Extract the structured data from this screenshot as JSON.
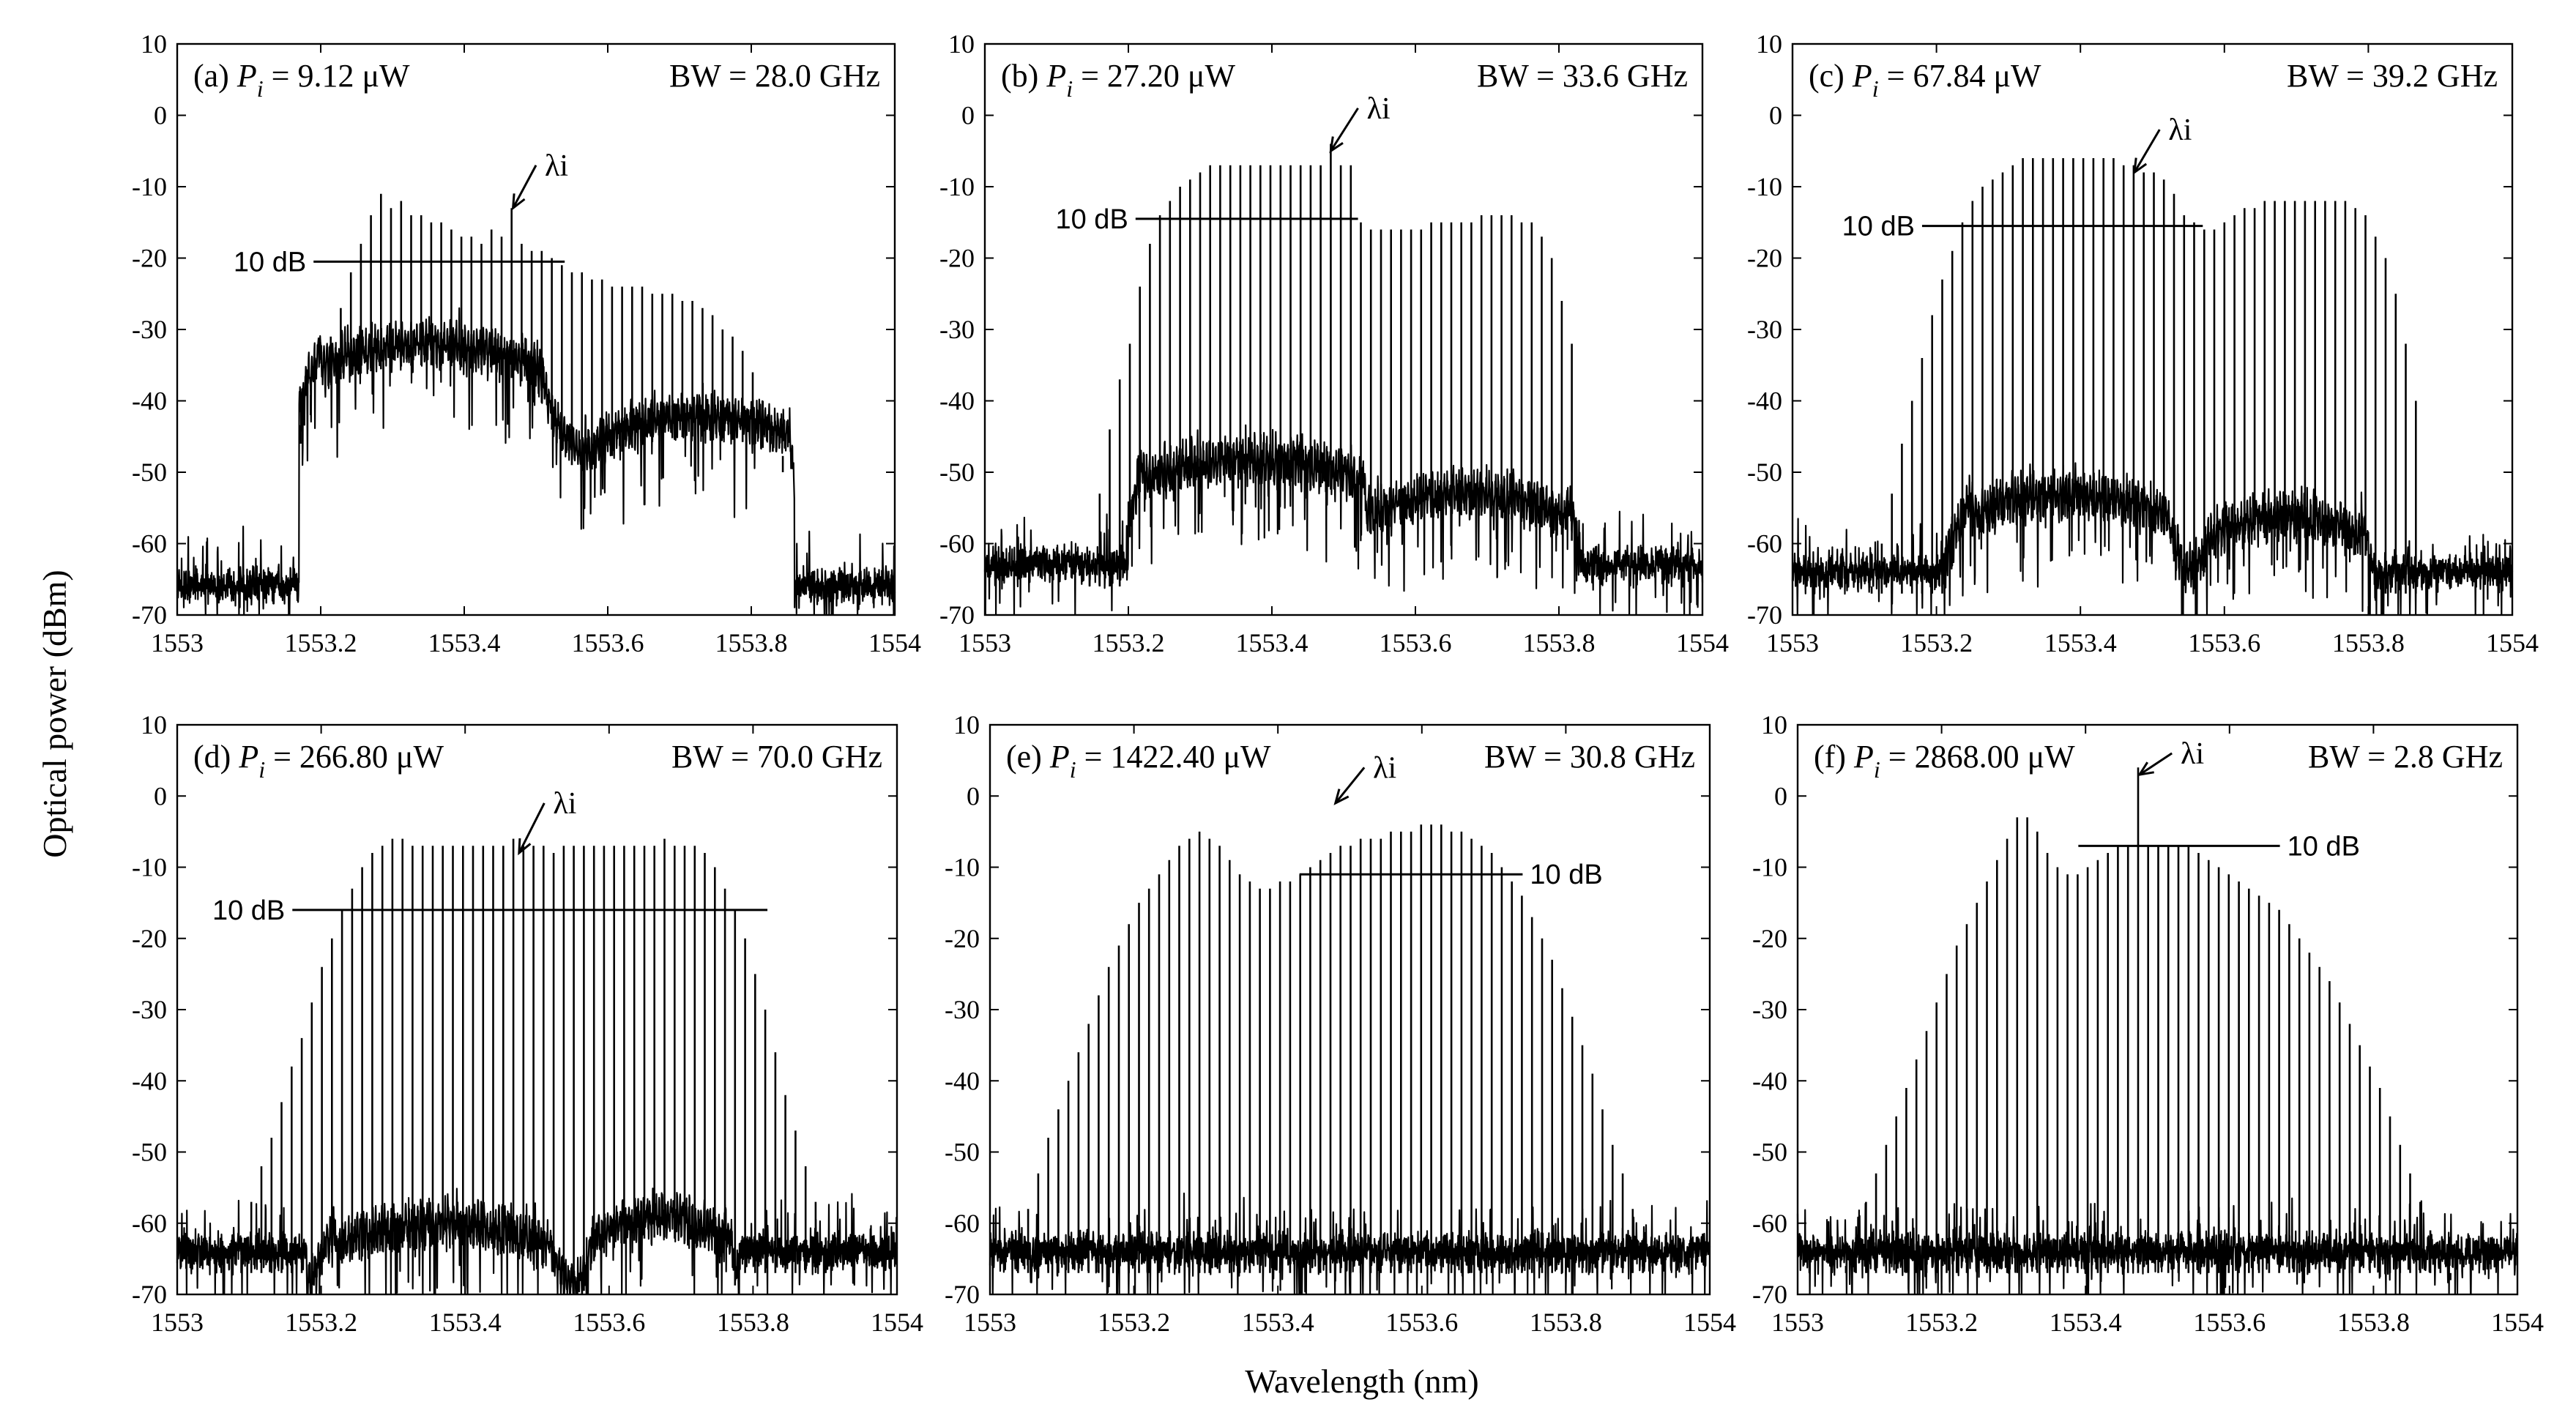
{
  "figure": {
    "ylabel": "Optical power (dBm)",
    "xlabel": "Wavelength (nm)"
  },
  "chart_data": [
    {
      "type": "line",
      "panel": "(a)",
      "p_label": "P",
      "p_sub": "i",
      "p_value": "= 9.12 μW",
      "bw": "BW = 28.0 GHz",
      "xlim": [
        1553,
        1554
      ],
      "ylim": [
        -70,
        10
      ],
      "xticks": [
        "1553",
        "1553.2",
        "1553.4",
        "1553.6",
        "1553.8",
        "1554"
      ],
      "yticks": [
        "10",
        "0",
        "-10",
        "-20",
        "-30",
        "-40",
        "-50",
        "-60",
        "-70"
      ],
      "lambda_label": "λi",
      "lambda_x": 1553.468,
      "lambda_tip_y": -13,
      "lambda_tail": [
        1553.5,
        -7
      ],
      "db_label": "10 dB",
      "db_line": [
        1553.19,
        1553.54,
        -20.5
      ],
      "noise_floor": -66,
      "pedestal": {
        "x0": 1553.17,
        "x1": 1553.86,
        "plateaus": [
          {
            "x0": 1553.2,
            "x1": 1553.5,
            "y": -32
          },
          {
            "x0": 1553.6,
            "x1": 1553.85,
            "y": -42
          }
        ]
      },
      "comb_x": [
        1553.172,
        1553.186,
        1553.2,
        1553.214,
        1553.228,
        1553.242,
        1553.256,
        1553.27,
        1553.284,
        1553.298,
        1553.312,
        1553.326,
        1553.34,
        1553.354,
        1553.368,
        1553.382,
        1553.396,
        1553.41,
        1553.424,
        1553.438,
        1553.452,
        1553.466,
        1553.48,
        1553.494,
        1553.508,
        1553.522,
        1553.536,
        1553.55,
        1553.564,
        1553.578,
        1553.592,
        1553.606,
        1553.62,
        1553.634,
        1553.648,
        1553.662,
        1553.676,
        1553.69,
        1553.704,
        1553.718,
        1553.732,
        1553.746,
        1553.76,
        1553.774,
        1553.788,
        1553.802,
        1553.816,
        1553.83,
        1553.844
      ],
      "comb_y": [
        -46,
        -42,
        -38,
        -31,
        -27,
        -22,
        -18,
        -14,
        -11,
        -13,
        -12,
        -14,
        -14,
        -15,
        -15,
        -16,
        -17,
        -17,
        -18,
        -16,
        -17,
        -13,
        -18,
        -19,
        -19,
        -20,
        -21,
        -22,
        -22,
        -23,
        -23,
        -24,
        -24,
        -24,
        -24,
        -25,
        -25,
        -25,
        -26,
        -26,
        -27,
        -28,
        -30,
        -31,
        -33,
        -36,
        -40,
        -45,
        -50
      ]
    },
    {
      "type": "line",
      "panel": "(b)",
      "p_label": "P",
      "p_sub": "i",
      "p_value": "= 27.20 μW",
      "bw": "BW = 33.6 GHz",
      "xlim": [
        1553,
        1554
      ],
      "ylim": [
        -70,
        10
      ],
      "xticks": [
        "1553",
        "1553.2",
        "1553.4",
        "1553.6",
        "1553.8",
        "1554"
      ],
      "yticks": [
        "10",
        "0",
        "-10",
        "-20",
        "-30",
        "-40",
        "-50",
        "-60",
        "-70"
      ],
      "lambda_label": "λi",
      "lambda_x": 1553.482,
      "lambda_tip_y": -5,
      "lambda_tail": [
        1553.52,
        1
      ],
      "db_label": "10 dB",
      "db_line": [
        1553.21,
        1553.52,
        -14.5
      ],
      "noise_floor": -63,
      "pedestal": {
        "x0": 1553.2,
        "x1": 1553.83,
        "plateaus": [
          {
            "x0": 1553.22,
            "x1": 1553.53,
            "y": -48
          },
          {
            "x0": 1553.53,
            "x1": 1553.81,
            "y": -53
          }
        ]
      },
      "comb_x": [
        1553.146,
        1553.16,
        1553.174,
        1553.188,
        1553.202,
        1553.216,
        1553.23,
        1553.244,
        1553.258,
        1553.272,
        1553.286,
        1553.3,
        1553.314,
        1553.328,
        1553.342,
        1553.356,
        1553.37,
        1553.384,
        1553.398,
        1553.412,
        1553.426,
        1553.44,
        1553.454,
        1553.468,
        1553.482,
        1553.496,
        1553.51,
        1553.524,
        1553.538,
        1553.552,
        1553.566,
        1553.58,
        1553.594,
        1553.608,
        1553.622,
        1553.636,
        1553.65,
        1553.664,
        1553.678,
        1553.692,
        1553.706,
        1553.72,
        1553.734,
        1553.748,
        1553.762,
        1553.776,
        1553.79,
        1553.804,
        1553.818
      ],
      "comb_y": [
        -61,
        -53,
        -44,
        -37,
        -32,
        -24,
        -18,
        -14,
        -12,
        -10,
        -9,
        -8,
        -7,
        -7,
        -7,
        -7,
        -7,
        -7,
        -7,
        -7,
        -7,
        -7,
        -7,
        -7,
        -4,
        -7,
        -7,
        -15,
        -16,
        -16,
        -16,
        -16,
        -16,
        -16,
        -15,
        -15,
        -15,
        -15,
        -15,
        -14,
        -14,
        -14,
        -14,
        -15,
        -15,
        -17,
        -20,
        -26,
        -32
      ]
    },
    {
      "type": "line",
      "panel": "(c)",
      "p_label": "P",
      "p_sub": "i",
      "p_value": "= 67.84 μW",
      "bw": "BW = 39.2 GHz",
      "xlim": [
        1553,
        1554
      ],
      "ylim": [
        -70,
        10
      ],
      "xticks": [
        "1553",
        "1553.2",
        "1553.4",
        "1553.6",
        "1553.8",
        "1554"
      ],
      "yticks": [
        "10",
        "0",
        "-10",
        "-20",
        "-30",
        "-40",
        "-50",
        "-60",
        "-70"
      ],
      "lambda_label": "λi",
      "lambda_x": 1553.475,
      "lambda_tip_y": -8,
      "lambda_tail": [
        1553.51,
        -2
      ],
      "db_label": "10 dB",
      "db_line": [
        1553.18,
        1553.57,
        -15.5
      ],
      "noise_floor": -64,
      "pedestal": {
        "x0": 1553.21,
        "x1": 1553.81,
        "plateaus": [
          {
            "x0": 1553.25,
            "x1": 1553.52,
            "y": -53
          },
          {
            "x0": 1553.58,
            "x1": 1553.79,
            "y": -56
          }
        ]
      },
      "comb_x": [
        1553.11,
        1553.124,
        1553.138,
        1553.152,
        1553.166,
        1553.18,
        1553.194,
        1553.208,
        1553.222,
        1553.236,
        1553.25,
        1553.264,
        1553.278,
        1553.292,
        1553.306,
        1553.32,
        1553.334,
        1553.348,
        1553.362,
        1553.376,
        1553.39,
        1553.404,
        1553.418,
        1553.432,
        1553.446,
        1553.46,
        1553.474,
        1553.488,
        1553.502,
        1553.516,
        1553.53,
        1553.544,
        1553.558,
        1553.572,
        1553.586,
        1553.6,
        1553.614,
        1553.628,
        1553.642,
        1553.656,
        1553.67,
        1553.684,
        1553.698,
        1553.712,
        1553.726,
        1553.74,
        1553.754,
        1553.768,
        1553.782,
        1553.796,
        1553.81,
        1553.824,
        1553.838,
        1553.852,
        1553.866
      ],
      "comb_y": [
        -66,
        -60,
        -53,
        -46,
        -40,
        -34,
        -28,
        -23,
        -19,
        -15,
        -12,
        -10,
        -9,
        -8,
        -7,
        -6,
        -6,
        -6,
        -6,
        -6,
        -6,
        -6,
        -6,
        -6,
        -6,
        -7,
        -7,
        -8,
        -8,
        -9,
        -11,
        -14,
        -15,
        -16,
        -16,
        -15,
        -14,
        -13,
        -13,
        -12,
        -12,
        -12,
        -12,
        -12,
        -12,
        -12,
        -12,
        -12,
        -13,
        -14,
        -17,
        -20,
        -25,
        -32,
        -40
      ]
    },
    {
      "type": "line",
      "panel": "(d)",
      "p_label": "P",
      "p_sub": "i",
      "p_value": "= 266.80 μW",
      "bw": "BW = 70.0 GHz",
      "xlim": [
        1553,
        1554
      ],
      "ylim": [
        -70,
        10
      ],
      "xticks": [
        "1553",
        "1553.2",
        "1553.4",
        "1553.6",
        "1553.8",
        "1554"
      ],
      "yticks": [
        "10",
        "0",
        "-10",
        "-20",
        "-30",
        "-40",
        "-50",
        "-60",
        "-70"
      ],
      "lambda_label": "λi",
      "lambda_x": 1553.475,
      "lambda_tip_y": -8,
      "lambda_tail": [
        1553.51,
        -1
      ],
      "db_label": "10 dB",
      "db_line": [
        1553.16,
        1553.82,
        -16
      ],
      "noise_floor": -64,
      "pedestal": {
        "x0": 1553.18,
        "x1": 1553.78,
        "plateaus": [
          {
            "x0": 1553.22,
            "x1": 1553.52,
            "y": -60
          },
          {
            "x0": 1553.58,
            "x1": 1553.76,
            "y": -59
          }
        ]
      },
      "comb_x": [
        1553.075,
        1553.089,
        1553.103,
        1553.117,
        1553.131,
        1553.145,
        1553.159,
        1553.173,
        1553.187,
        1553.201,
        1553.215,
        1553.229,
        1553.243,
        1553.257,
        1553.271,
        1553.285,
        1553.299,
        1553.313,
        1553.327,
        1553.341,
        1553.355,
        1553.369,
        1553.383,
        1553.397,
        1553.411,
        1553.425,
        1553.439,
        1553.453,
        1553.467,
        1553.481,
        1553.495,
        1553.509,
        1553.523,
        1553.537,
        1553.551,
        1553.565,
        1553.579,
        1553.593,
        1553.607,
        1553.621,
        1553.635,
        1553.649,
        1553.663,
        1553.677,
        1553.691,
        1553.705,
        1553.719,
        1553.733,
        1553.747,
        1553.761,
        1553.775,
        1553.789,
        1553.803,
        1553.817,
        1553.831,
        1553.845,
        1553.859,
        1553.873,
        1553.887,
        1553.901,
        1553.915
      ],
      "comb_y": [
        -67,
        -62,
        -57,
        -52,
        -48,
        -43,
        -38,
        -34,
        -29,
        -24,
        -20,
        -16,
        -13,
        -10,
        -8,
        -7,
        -6,
        -6,
        -7,
        -7,
        -7,
        -7,
        -7,
        -7,
        -7,
        -7,
        -7,
        -7,
        -6,
        -7,
        -7,
        -7,
        -8,
        -7,
        -7,
        -7,
        -7,
        -7,
        -7,
        -7,
        -7,
        -7,
        -7,
        -6,
        -7,
        -7,
        -7,
        -8,
        -10,
        -13,
        -16,
        -20,
        -25,
        -30,
        -36,
        -42,
        -47,
        -52,
        -57,
        -62,
        -67
      ]
    },
    {
      "type": "line",
      "panel": "(e)",
      "p_label": "P",
      "p_sub": "i",
      "p_value": "= 1422.40 μW",
      "bw": "BW = 30.8 GHz",
      "xlim": [
        1553,
        1554
      ],
      "ylim": [
        -70,
        10
      ],
      "xticks": [
        "1553",
        "1553.2",
        "1553.4",
        "1553.6",
        "1553.8",
        "1554"
      ],
      "yticks": [
        "10",
        "0",
        "-10",
        "-20",
        "-30",
        "-40",
        "-50",
        "-60",
        "-70"
      ],
      "lambda_label": "λi",
      "lambda_x": 1553.48,
      "lambda_tip_y": -1,
      "lambda_tail": [
        1553.52,
        4
      ],
      "db_label": "10 dB",
      "db_line": [
        1553.43,
        1553.74,
        -11
      ],
      "noise_floor": -64,
      "pedestal": null,
      "comb_x": [
        1553.025,
        1553.039,
        1553.053,
        1553.067,
        1553.081,
        1553.095,
        1553.109,
        1553.123,
        1553.137,
        1553.151,
        1553.165,
        1553.179,
        1553.193,
        1553.207,
        1553.221,
        1553.235,
        1553.249,
        1553.263,
        1553.277,
        1553.291,
        1553.305,
        1553.319,
        1553.333,
        1553.347,
        1553.361,
        1553.375,
        1553.389,
        1553.403,
        1553.417,
        1553.431,
        1553.445,
        1553.459,
        1553.473,
        1553.487,
        1553.501,
        1553.515,
        1553.529,
        1553.543,
        1553.557,
        1553.571,
        1553.585,
        1553.599,
        1553.613,
        1553.627,
        1553.641,
        1553.655,
        1553.669,
        1553.683,
        1553.697,
        1553.711,
        1553.725,
        1553.739,
        1553.753,
        1553.767,
        1553.781,
        1553.795,
        1553.809,
        1553.823,
        1553.837,
        1553.851,
        1553.865,
        1553.879,
        1553.893,
        1553.907
      ],
      "comb_y": [
        -67,
        -63,
        -58,
        -53,
        -48,
        -44,
        -40,
        -36,
        -32,
        -28,
        -24,
        -21,
        -18,
        -15,
        -13,
        -11,
        -9,
        -7,
        -6,
        -5,
        -6,
        -7,
        -9,
        -11,
        -12,
        -13,
        -13,
        -12,
        -12,
        -11,
        -10,
        -9,
        -8,
        -7,
        -7,
        -6,
        -6,
        -6,
        -5,
        -5,
        -5,
        -4,
        -4,
        -4,
        -5,
        -5,
        -6,
        -7,
        -8,
        -10,
        -12,
        -14,
        -17,
        -20,
        -23,
        -27,
        -31,
        -35,
        -39,
        -44,
        -49,
        -53,
        -58,
        -63
      ]
    },
    {
      "type": "line",
      "panel": "(f)",
      "p_label": "P",
      "p_sub": "i",
      "p_value": "= 2868.00 μW",
      "bw": "BW = 2.8 GHz",
      "xlim": [
        1553,
        1554
      ],
      "ylim": [
        -70,
        10
      ],
      "xticks": [
        "1553",
        "1553.2",
        "1553.4",
        "1553.6",
        "1553.8",
        "1554"
      ],
      "yticks": [
        "10",
        "0",
        "-10",
        "-20",
        "-30",
        "-40",
        "-50",
        "-60",
        "-70"
      ],
      "lambda_label": "λi",
      "lambda_x": 1553.475,
      "lambda_tip_y": 3,
      "lambda_tail": [
        1553.52,
        6
      ],
      "db_label": "10 dB",
      "db_line": [
        1553.39,
        1553.67,
        -7
      ],
      "noise_floor": -64,
      "pedestal": null,
      "comb_x": [
        1553.067,
        1553.081,
        1553.095,
        1553.109,
        1553.123,
        1553.137,
        1553.151,
        1553.165,
        1553.179,
        1553.193,
        1553.207,
        1553.221,
        1553.235,
        1553.249,
        1553.263,
        1553.277,
        1553.291,
        1553.305,
        1553.319,
        1553.333,
        1553.347,
        1553.361,
        1553.375,
        1553.389,
        1553.403,
        1553.417,
        1553.431,
        1553.445,
        1553.459,
        1553.473,
        1553.487,
        1553.501,
        1553.515,
        1553.529,
        1553.543,
        1553.557,
        1553.571,
        1553.585,
        1553.599,
        1553.613,
        1553.627,
        1553.641,
        1553.655,
        1553.669,
        1553.683,
        1553.697,
        1553.711,
        1553.725,
        1553.739,
        1553.753,
        1553.767,
        1553.781,
        1553.795,
        1553.809,
        1553.823,
        1553.837,
        1553.851,
        1553.865,
        1553.879,
        1553.893,
        1553.907
      ],
      "comb_y": [
        -66,
        -62,
        -57,
        -53,
        -49,
        -45,
        -41,
        -37,
        -33,
        -29,
        -25,
        -21,
        -18,
        -15,
        -12,
        -9,
        -6,
        -3,
        -3,
        -5,
        -8,
        -10,
        -11,
        -11,
        -10,
        -9,
        -8,
        -7,
        -7,
        4,
        -7,
        -7,
        -7,
        -7,
        -7,
        -8,
        -9,
        -10,
        -11,
        -12,
        -13,
        -14,
        -15,
        -16,
        -18,
        -20,
        -22,
        -24,
        -26,
        -29,
        -32,
        -35,
        -38,
        -41,
        -45,
        -49,
        -53,
        -57,
        -61,
        -65,
        -68
      ]
    }
  ]
}
